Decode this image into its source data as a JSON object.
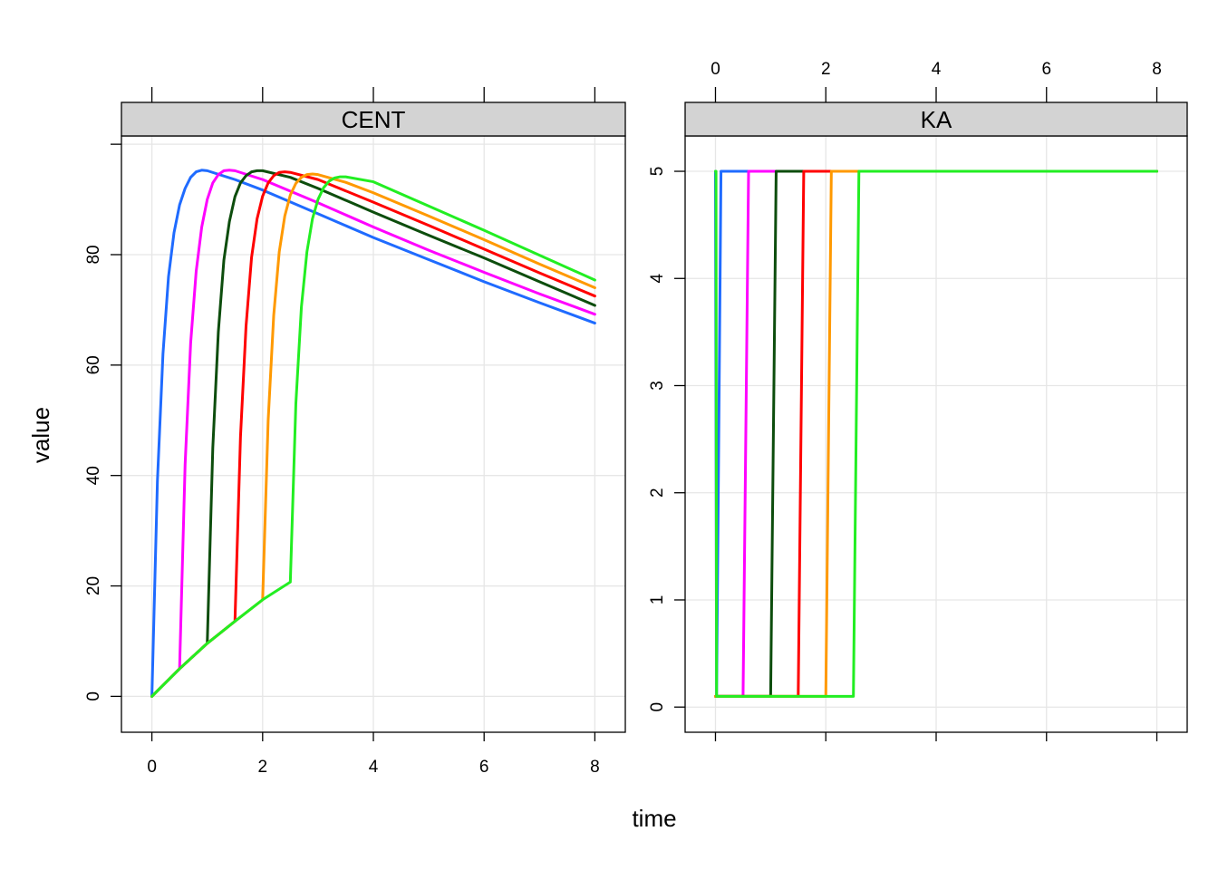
{
  "figure": {
    "xlabel": "time",
    "ylabel": "value"
  },
  "colors": {
    "grid": "#e6e6e6",
    "strip": "#d3d3d3",
    "frame": "#000000"
  },
  "chart_data": [
    {
      "type": "line",
      "panel": "CENT",
      "title": "CENT",
      "xlabel": "time",
      "ylabel": "value",
      "xlim": [
        -0.55,
        8.55
      ],
      "ylim": [
        -6.5,
        101.5
      ],
      "x_ticks": [
        0,
        2,
        4,
        6,
        8
      ],
      "y_ticks": [
        0,
        20,
        40,
        60,
        80,
        100
      ],
      "y_tick_labels": [
        "0",
        "20",
        "40",
        "60",
        "80",
        ""
      ],
      "x_tick_labels_side": "bottom",
      "y_tick_labels_side": "left",
      "grid": true,
      "series": [
        {
          "color": "#1f6bff",
          "x": [
            0,
            0.1,
            0.2,
            0.3,
            0.4,
            0.5,
            0.6,
            0.7,
            0.8,
            0.9,
            1.0,
            1.5,
            2,
            3,
            4,
            5,
            6,
            7,
            8
          ],
          "y": [
            0,
            39,
            62,
            76,
            84,
            89,
            92,
            94,
            95,
            95.3,
            95.2,
            93.6,
            91.7,
            87.4,
            83.1,
            79.1,
            75.1,
            71.3,
            67.6
          ]
        },
        {
          "color": "#ff00ff",
          "x": [
            0,
            0.5,
            0.6,
            0.7,
            0.8,
            0.9,
            1.0,
            1.1,
            1.2,
            1.3,
            1.4,
            1.5,
            2,
            3,
            4,
            5,
            6,
            7,
            8
          ],
          "y": [
            0,
            5,
            42,
            64,
            77,
            85,
            90,
            93,
            94.5,
            95.2,
            95.3,
            95.2,
            93.6,
            89.4,
            85.0,
            80.8,
            76.8,
            72.9,
            69.2
          ]
        },
        {
          "color": "#0d4d0d",
          "x": [
            0,
            0.5,
            1.0,
            1.1,
            1.2,
            1.3,
            1.4,
            1.5,
            1.6,
            1.7,
            1.8,
            1.9,
            2.0,
            2.5,
            3,
            4,
            5,
            6,
            7,
            8
          ],
          "y": [
            0,
            5,
            9.6,
            45,
            66,
            79,
            86,
            90.5,
            93,
            94.3,
            95,
            95.2,
            95.2,
            94,
            92,
            87.7,
            83.5,
            79.4,
            75.1,
            70.8
          ]
        },
        {
          "color": "#ff0000",
          "x": [
            0,
            0.5,
            1.0,
            1.5,
            1.6,
            1.7,
            1.8,
            1.9,
            2.0,
            2.1,
            2.2,
            2.3,
            2.4,
            2.5,
            3,
            4,
            5,
            6,
            7,
            8
          ],
          "y": [
            0,
            5,
            9.6,
            13.6,
            47,
            67,
            79.5,
            86.5,
            90.6,
            93,
            94.3,
            94.9,
            95,
            94.9,
            93.6,
            89.5,
            85.3,
            81.0,
            76.7,
            72.5
          ]
        },
        {
          "color": "#ff9900",
          "x": [
            0,
            0.5,
            1.0,
            1.5,
            2.0,
            2.1,
            2.2,
            2.3,
            2.4,
            2.5,
            2.6,
            2.7,
            2.8,
            2.9,
            3.0,
            3.5,
            4,
            5,
            6,
            7,
            8
          ],
          "y": [
            0,
            5,
            9.6,
            13.6,
            17.5,
            50,
            69,
            80.5,
            87,
            90.8,
            92.9,
            94,
            94.5,
            94.6,
            94.5,
            93.1,
            91.2,
            87.0,
            82.7,
            78.3,
            74.0
          ]
        },
        {
          "color": "#22ee22",
          "x": [
            0,
            0.5,
            1.0,
            1.5,
            2.0,
            2.5,
            2.6,
            2.7,
            2.8,
            2.9,
            3.0,
            3.1,
            3.2,
            3.3,
            3.4,
            3.5,
            4,
            5,
            6,
            7,
            8
          ],
          "y": [
            0,
            5,
            9.6,
            13.6,
            17.5,
            20.7,
            53,
            70.5,
            80.5,
            86.5,
            90,
            92.1,
            93.3,
            93.9,
            94.1,
            94.1,
            93.2,
            88.8,
            84.4,
            79.9,
            75.4
          ]
        }
      ]
    },
    {
      "type": "line",
      "panel": "KA",
      "title": "KA",
      "xlabel": "time",
      "ylabel": "value",
      "xlim": [
        -0.55,
        8.55
      ],
      "ylim": [
        -0.235,
        5.33
      ],
      "x_ticks": [
        0,
        2,
        4,
        6,
        8
      ],
      "y_ticks": [
        0,
        1,
        2,
        3,
        4,
        5
      ],
      "y_tick_labels": [
        "0",
        "1",
        "2",
        "3",
        "4",
        "5"
      ],
      "x_tick_labels_side": "top",
      "y_tick_labels_side": "left",
      "grid": true,
      "series": [
        {
          "color": "#1f6bff",
          "x": [
            0,
            0.02,
            0.1,
            8
          ],
          "y": [
            5,
            0.1,
            5,
            5
          ]
        },
        {
          "color": "#ff00ff",
          "x": [
            0,
            0.5,
            0.6,
            8
          ],
          "y": [
            0.1,
            0.1,
            5,
            5
          ]
        },
        {
          "color": "#0d4d0d",
          "x": [
            0,
            1.0,
            1.1,
            8
          ],
          "y": [
            0.1,
            0.1,
            5,
            5
          ]
        },
        {
          "color": "#ff0000",
          "x": [
            0,
            1.5,
            1.6,
            8
          ],
          "y": [
            0.1,
            0.1,
            5,
            5
          ]
        },
        {
          "color": "#ff9900",
          "x": [
            0,
            2.0,
            2.1,
            8
          ],
          "y": [
            0.1,
            0.1,
            5,
            5
          ]
        },
        {
          "color": "#22ee22",
          "x": [
            0,
            0.01,
            0.02,
            2.5,
            2.6,
            8
          ],
          "y": [
            5,
            5,
            0.1,
            0.1,
            5,
            5
          ]
        }
      ]
    }
  ]
}
